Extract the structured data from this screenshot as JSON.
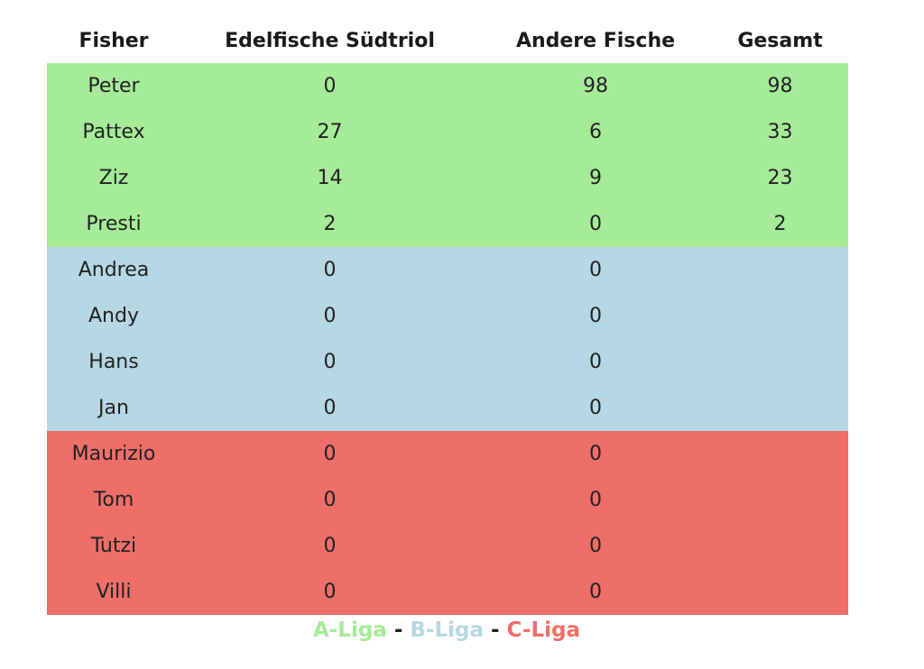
{
  "table": {
    "headers": [
      "Fisher",
      "Edelfische Südtriol",
      "Andere Fische",
      "Gesamt"
    ],
    "groups": [
      {
        "league": "A",
        "color": "#a6eb98",
        "rows": [
          [
            "Peter",
            "0",
            "98",
            "98"
          ],
          [
            "Pattex",
            "27",
            "6",
            "33"
          ],
          [
            "Ziz",
            "14",
            "9",
            "23"
          ],
          [
            "Presti",
            "2",
            "0",
            "2"
          ]
        ]
      },
      {
        "league": "B",
        "color": "#b6d7e4",
        "rows": [
          [
            "Andrea",
            "0",
            "0",
            ""
          ],
          [
            "Andy",
            "0",
            "0",
            ""
          ],
          [
            "Hans",
            "0",
            "0",
            ""
          ],
          [
            "Jan",
            "0",
            "0",
            ""
          ]
        ]
      },
      {
        "league": "C",
        "color": "#ee6e69",
        "rows": [
          [
            "Maurizio",
            "0",
            "0",
            ""
          ],
          [
            "Tom",
            "0",
            "0",
            ""
          ],
          [
            "Tutzi",
            "0",
            "0",
            ""
          ],
          [
            "Villi",
            "0",
            "0",
            ""
          ]
        ]
      }
    ]
  },
  "legend": {
    "items": [
      {
        "label": "A-Liga",
        "color": "#a6eb98"
      },
      {
        "label": "B-Liga",
        "color": "#b6d7e4"
      },
      {
        "label": "C-Liga",
        "color": "#ee6e69"
      }
    ],
    "separator": " - "
  }
}
